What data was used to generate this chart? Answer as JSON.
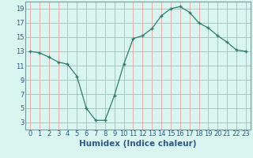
{
  "x": [
    0,
    1,
    2,
    3,
    4,
    5,
    6,
    7,
    8,
    9,
    10,
    11,
    12,
    13,
    14,
    15,
    16,
    17,
    18,
    19,
    20,
    21,
    22,
    23
  ],
  "y": [
    13.0,
    12.8,
    12.2,
    11.5,
    11.2,
    9.5,
    5.0,
    3.3,
    3.3,
    6.8,
    11.2,
    14.8,
    15.2,
    16.2,
    18.0,
    19.0,
    19.3,
    18.5,
    17.0,
    16.3,
    15.2,
    14.3,
    13.2,
    13.0
  ],
  "line_color": "#2e7d6e",
  "marker_color": "#2e7d6e",
  "bg_color": "#d8f5f0",
  "grid_color": "#e8a0a0",
  "xlabel": "Humidex (Indice chaleur)",
  "xlim": [
    -0.5,
    23.5
  ],
  "ylim": [
    2,
    20
  ],
  "yticks": [
    3,
    5,
    7,
    9,
    11,
    13,
    15,
    17,
    19
  ],
  "xticks": [
    0,
    1,
    2,
    3,
    4,
    5,
    6,
    7,
    8,
    9,
    10,
    11,
    12,
    13,
    14,
    15,
    16,
    17,
    18,
    19,
    20,
    21,
    22,
    23
  ],
  "xtick_labels": [
    "0",
    "1",
    "2",
    "3",
    "4",
    "5",
    "6",
    "7",
    "8",
    "9",
    "10",
    "11",
    "12",
    "13",
    "14",
    "15",
    "16",
    "17",
    "18",
    "19",
    "20",
    "21",
    "22",
    "23"
  ],
  "label_fontsize": 7.5,
  "tick_fontsize": 6.0,
  "xlabel_color": "#2e5a8a"
}
